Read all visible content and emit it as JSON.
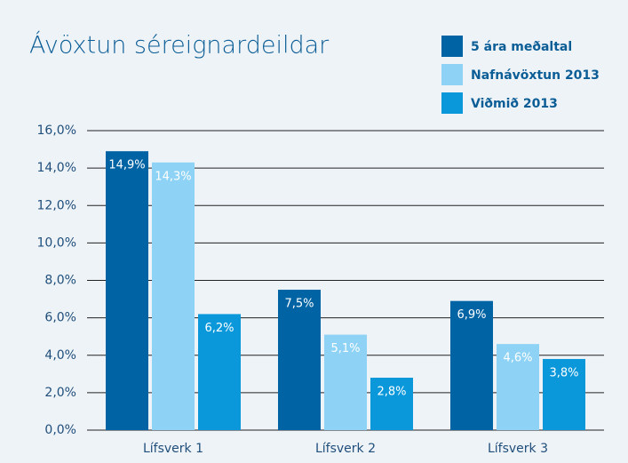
{
  "chart_data": {
    "type": "bar",
    "title": "Ávöxtun séreignardeildar",
    "categories": [
      "Lífsverk 1",
      "Lífsverk 2",
      "Lífsverk 3"
    ],
    "series": [
      {
        "name": "5 ára meðaltal",
        "color": "#0063a4",
        "values": [
          14.9,
          7.5,
          6.9
        ],
        "value_labels": [
          "14,9%",
          "7,5%",
          "6,9%"
        ]
      },
      {
        "name": "Nafnávöxtun 2013",
        "color": "#8ed3f6",
        "values": [
          14.3,
          5.1,
          4.6
        ],
        "value_labels": [
          "14,3%",
          "5,1%",
          "4,6%"
        ]
      },
      {
        "name": "Viðmið 2013",
        "color": "#0a98da",
        "values": [
          6.2,
          2.8,
          3.8
        ],
        "value_labels": [
          "6,2%",
          "2,8%",
          "3,8%"
        ]
      }
    ],
    "ylim": [
      0,
      16
    ],
    "yticks": [
      {
        "value": 0,
        "label": "0,0%"
      },
      {
        "value": 2,
        "label": "2,0%"
      },
      {
        "value": 4,
        "label": "4,0%"
      },
      {
        "value": 6,
        "label": "6,0%"
      },
      {
        "value": 8,
        "label": "8,0%"
      },
      {
        "value": 10,
        "label": "10,0%"
      },
      {
        "value": 12,
        "label": "12,0%"
      },
      {
        "value": 14,
        "label": "14,0%"
      },
      {
        "value": 16,
        "label": "16,0%"
      }
    ],
    "grid": true
  }
}
